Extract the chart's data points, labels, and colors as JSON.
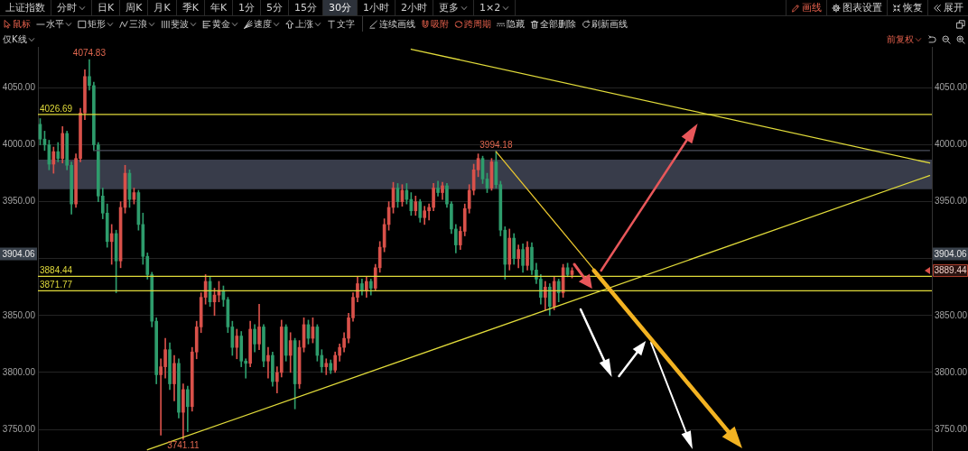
{
  "chart_data": {
    "type": "candlestick",
    "title": "上证指数",
    "categories": [
      null,
      null,
      null,
      null,
      null,
      null,
      null,
      null,
      null,
      null,
      null,
      null,
      null,
      null,
      null,
      null,
      null,
      null,
      null,
      null,
      null,
      null,
      null,
      null,
      null,
      null,
      null,
      null,
      null,
      null,
      null,
      null,
      null,
      null,
      null,
      null,
      null,
      null,
      null,
      null,
      null,
      null,
      null,
      null,
      null,
      null,
      null,
      null,
      null,
      null,
      null,
      null,
      null,
      null,
      null,
      null,
      null,
      null,
      null,
      null,
      null,
      null,
      null,
      null,
      null,
      null,
      null,
      null,
      null,
      null,
      null,
      null,
      null,
      null,
      null,
      null,
      null,
      null,
      null,
      null,
      null,
      null,
      null,
      null,
      null,
      null,
      null,
      null,
      null,
      null,
      null,
      null,
      null,
      null,
      null,
      null,
      null,
      null,
      null,
      null,
      null,
      null,
      null,
      null,
      null,
      null,
      null,
      null,
      null,
      null,
      null,
      null,
      null,
      null,
      null,
      null,
      null,
      null,
      null,
      null,
      null,
      null,
      null,
      null,
      null,
      null,
      null,
      null,
      null,
      null,
      null,
      null,
      null,
      null,
      null,
      null,
      null,
      null,
      null,
      null,
      null,
      null,
      null,
      null,
      null,
      null,
      null,
      null,
      null,
      null,
      null,
      null,
      null,
      null,
      null,
      null,
      null,
      null,
      null,
      null,
      null,
      null,
      null,
      null,
      null,
      null,
      null,
      null,
      null,
      null,
      null,
      null,
      null,
      null,
      null,
      null,
      null,
      null,
      null,
      null,
      null,
      null,
      null,
      null,
      null,
      null,
      null,
      null,
      null,
      null,
      null,
      null,
      null,
      null,
      null,
      null,
      null,
      null,
      null,
      null
    ],
    "ohlc": [
      [
        4018,
        4023,
        4000,
        4005
      ],
      [
        4005,
        4012,
        3995,
        4000
      ],
      [
        4000,
        4004,
        3978,
        3983
      ],
      [
        3983,
        3998,
        3975,
        3994
      ],
      [
        3994,
        4002,
        3985,
        3988
      ],
      [
        3988,
        4016,
        3984,
        4010
      ],
      [
        4010,
        4012,
        3978,
        3982
      ],
      [
        3982,
        3985,
        3939,
        3948
      ],
      [
        3948,
        3992,
        3945,
        3988
      ],
      [
        3988,
        4032,
        3985,
        4028
      ],
      [
        4028,
        4066,
        4022,
        4060
      ],
      [
        4060,
        4074.83,
        4048,
        4052
      ],
      [
        4052,
        4055,
        3995,
        4000
      ],
      [
        4000,
        4002,
        3950,
        3955
      ],
      [
        3955,
        3962,
        3935,
        3940
      ],
      [
        3940,
        3948,
        3910,
        3915
      ],
      [
        3915,
        3930,
        3895,
        3922
      ],
      [
        3922,
        3925,
        3870,
        3898
      ],
      [
        3898,
        3950,
        3892,
        3945
      ],
      [
        3945,
        3982,
        3940,
        3975
      ],
      [
        3975,
        3978,
        3945,
        3952
      ],
      [
        3952,
        3962,
        3948,
        3958
      ],
      [
        3958,
        3960,
        3925,
        3930
      ],
      [
        3930,
        3940,
        3895,
        3902
      ],
      [
        3902,
        3905,
        3882,
        3886
      ],
      [
        3886,
        3888,
        3840,
        3845
      ],
      [
        3845,
        3848,
        3790,
        3798
      ],
      [
        3798,
        3812,
        3745,
        3805
      ],
      [
        3805,
        3830,
        3795,
        3820
      ],
      [
        3820,
        3826,
        3785,
        3790
      ],
      [
        3790,
        3815,
        3775,
        3808
      ],
      [
        3808,
        3812,
        3760,
        3765
      ],
      [
        3765,
        3790,
        3741.11,
        3785
      ],
      [
        3785,
        3788,
        3748,
        3770
      ],
      [
        3770,
        3822,
        3766,
        3818
      ],
      [
        3818,
        3845,
        3812,
        3840
      ],
      [
        3840,
        3870,
        3835,
        3866
      ],
      [
        3866,
        3886,
        3860,
        3880
      ],
      [
        3880,
        3884,
        3858,
        3862
      ],
      [
        3862,
        3874,
        3850,
        3868
      ],
      [
        3868,
        3880,
        3862,
        3872
      ],
      [
        3872,
        3876,
        3858,
        3864
      ],
      [
        3864,
        3866,
        3835,
        3840
      ],
      [
        3840,
        3845,
        3815,
        3822
      ],
      [
        3822,
        3838,
        3812,
        3832
      ],
      [
        3832,
        3836,
        3805,
        3810
      ],
      [
        3810,
        3812,
        3795,
        3808
      ],
      [
        3808,
        3845,
        3805,
        3838
      ],
      [
        3838,
        3842,
        3818,
        3825
      ],
      [
        3825,
        3860,
        3820,
        3840
      ],
      [
        3840,
        3842,
        3805,
        3810
      ],
      [
        3810,
        3822,
        3795,
        3815
      ],
      [
        3815,
        3818,
        3788,
        3792
      ],
      [
        3792,
        3805,
        3782,
        3800
      ],
      [
        3800,
        3846,
        3796,
        3840
      ],
      [
        3840,
        3842,
        3810,
        3815
      ],
      [
        3815,
        3835,
        3800,
        3828
      ],
      [
        3828,
        3830,
        3768,
        3790
      ],
      [
        3790,
        3828,
        3786,
        3822
      ],
      [
        3822,
        3848,
        3818,
        3842
      ],
      [
        3842,
        3846,
        3825,
        3830
      ],
      [
        3830,
        3848,
        3826,
        3840
      ],
      [
        3840,
        3842,
        3810,
        3815
      ],
      [
        3815,
        3820,
        3800,
        3805
      ],
      [
        3805,
        3812,
        3798,
        3808
      ],
      [
        3808,
        3811,
        3799,
        3802
      ],
      [
        3802,
        3818,
        3800,
        3815
      ],
      [
        3815,
        3825,
        3810,
        3822
      ],
      [
        3822,
        3835,
        3818,
        3830
      ],
      [
        3830,
        3852,
        3826,
        3848
      ],
      [
        3848,
        3870,
        3845,
        3866
      ],
      [
        3866,
        3884,
        3862,
        3878
      ],
      [
        3878,
        3882,
        3868,
        3872
      ],
      [
        3872,
        3884,
        3866,
        3880
      ],
      [
        3880,
        3882,
        3868,
        3874
      ],
      [
        3874,
        3895,
        3872,
        3892
      ],
      [
        3892,
        3915,
        3888,
        3910
      ],
      [
        3910,
        3935,
        3906,
        3930
      ],
      [
        3930,
        3950,
        3925,
        3945
      ],
      [
        3945,
        3967,
        3940,
        3962
      ],
      [
        3962,
        3966,
        3945,
        3950
      ],
      [
        3950,
        3965,
        3946,
        3960
      ],
      [
        3960,
        3966,
        3948,
        3952
      ],
      [
        3952,
        3958,
        3938,
        3942
      ],
      [
        3942,
        3955,
        3938,
        3950
      ],
      [
        3950,
        3952,
        3932,
        3936
      ],
      [
        3936,
        3946,
        3930,
        3942
      ],
      [
        3942,
        3948,
        3934,
        3945
      ],
      [
        3945,
        3966,
        3942,
        3962
      ],
      [
        3962,
        3968,
        3955,
        3958
      ],
      [
        3958,
        3967,
        3952,
        3964
      ],
      [
        3964,
        3966,
        3945,
        3948
      ],
      [
        3948,
        3950,
        3922,
        3926
      ],
      [
        3926,
        3930,
        3905,
        3912
      ],
      [
        3912,
        3928,
        3908,
        3924
      ],
      [
        3924,
        3948,
        3920,
        3944
      ],
      [
        3944,
        3965,
        3940,
        3960
      ],
      [
        3960,
        3983,
        3956,
        3978
      ],
      [
        3978,
        3992,
        3972,
        3988
      ],
      [
        3988,
        3990,
        3966,
        3970
      ],
      [
        3970,
        3975,
        3958,
        3962
      ],
      [
        3962,
        3988,
        3960,
        3985
      ],
      [
        3985,
        3994.18,
        3962,
        3965
      ],
      [
        3965,
        3968,
        3920,
        3925
      ],
      [
        3925,
        3928,
        3882,
        3895
      ],
      [
        3895,
        3926,
        3890,
        3918
      ],
      [
        3918,
        3922,
        3895,
        3900
      ],
      [
        3900,
        3912,
        3892,
        3908
      ],
      [
        3908,
        3913,
        3888,
        3894
      ],
      [
        3894,
        3915,
        3890,
        3910
      ],
      [
        3910,
        3914,
        3886,
        3890
      ],
      [
        3890,
        3896,
        3878,
        3882
      ],
      [
        3882,
        3886,
        3860,
        3866
      ],
      [
        3866,
        3880,
        3855,
        3875
      ],
      [
        3875,
        3878,
        3850,
        3858
      ],
      [
        3858,
        3884,
        3855,
        3880
      ],
      [
        3880,
        3882,
        3862,
        3870
      ],
      [
        3870,
        3895,
        3866,
        3892
      ],
      [
        3892,
        3896,
        3884,
        3886
      ],
      [
        3886,
        3892,
        3883,
        3889.44
      ],
      null,
      null,
      null,
      null,
      null,
      null,
      null,
      null,
      null,
      null,
      null,
      null,
      null,
      null,
      null,
      null,
      null,
      null,
      null,
      null,
      null,
      null,
      null,
      null,
      null,
      null,
      null,
      null,
      null,
      null,
      null,
      null,
      null,
      null,
      null,
      null,
      null,
      null,
      null,
      null,
      null,
      null,
      null,
      null,
      null,
      null,
      null,
      null,
      null,
      null,
      null,
      null,
      null,
      null,
      null,
      null,
      null,
      null,
      null,
      null,
      null,
      null,
      null,
      null,
      null,
      null,
      null,
      null,
      null,
      null,
      null,
      null,
      null,
      null,
      null,
      null,
      null,
      null,
      null,
      null
    ],
    "colors": [
      "#2e9c6c",
      "#2e9c6c",
      "#2e9c6c",
      "#d9514a",
      "#2e9c6c",
      "#d9514a",
      "#2e9c6c",
      "#2e9c6c",
      "#d9514a",
      "#d9514a",
      "#d9514a",
      "#2e9c6c",
      "#2e9c6c",
      "#2e9c6c",
      "#2e9c6c",
      "#2e9c6c",
      "#d9514a",
      "#2e9c6c",
      "#d9514a",
      "#d9514a",
      "#2e9c6c",
      "#d9514a",
      "#2e9c6c",
      "#2e9c6c",
      "#2e9c6c",
      "#2e9c6c",
      "#2e9c6c",
      "#d9514a",
      "#d9514a",
      "#2e9c6c",
      "#d9514a",
      "#2e9c6c",
      "#d9514a",
      "#2e9c6c",
      "#d9514a",
      "#d9514a",
      "#d9514a",
      "#d9514a",
      "#2e9c6c",
      "#d9514a",
      "#d9514a",
      "#2e9c6c",
      "#2e9c6c",
      "#2e9c6c",
      "#d9514a",
      "#2e9c6c",
      "#2e9c6c",
      "#d9514a",
      "#2e9c6c",
      "#d9514a",
      "#2e9c6c",
      "#d9514a",
      "#2e9c6c",
      "#d9514a",
      "#d9514a",
      "#2e9c6c",
      "#d9514a",
      "#2e9c6c",
      "#d9514a",
      "#d9514a",
      "#2e9c6c",
      "#d9514a",
      "#2e9c6c",
      "#2e9c6c",
      "#d9514a",
      "#2e9c6c",
      "#d9514a",
      "#d9514a",
      "#d9514a",
      "#d9514a",
      "#d9514a",
      "#d9514a",
      "#2e9c6c",
      "#d9514a",
      "#2e9c6c",
      "#d9514a",
      "#d9514a",
      "#d9514a",
      "#d9514a",
      "#d9514a",
      "#2e9c6c",
      "#d9514a",
      "#2e9c6c",
      "#2e9c6c",
      "#d9514a",
      "#2e9c6c",
      "#d9514a",
      "#d9514a",
      "#d9514a",
      "#2e9c6c",
      "#d9514a",
      "#2e9c6c",
      "#2e9c6c",
      "#2e9c6c",
      "#d9514a",
      "#d9514a",
      "#d9514a",
      "#d9514a",
      "#d9514a",
      "#2e9c6c",
      "#2e9c6c",
      "#d9514a",
      "#2e9c6c",
      "#2e9c6c",
      "#2e9c6c",
      "#d9514a",
      "#2e9c6c",
      "#d9514a",
      "#2e9c6c",
      "#d9514a",
      "#2e9c6c",
      "#2e9c6c",
      "#2e9c6c",
      "#d9514a",
      "#2e9c6c",
      "#d9514a",
      "#2e9c6c",
      "#d9514a",
      "#2e9c6c",
      "#d9514a",
      null,
      null,
      null,
      null,
      null,
      null,
      null,
      null,
      null,
      null,
      null,
      null,
      null,
      null,
      null,
      null,
      null,
      null,
      null,
      null,
      null,
      null,
      null,
      null,
      null,
      null,
      null,
      null,
      null,
      null,
      null,
      null,
      null,
      null,
      null,
      null,
      null,
      null,
      null,
      null,
      null,
      null,
      null,
      null,
      null,
      null,
      null,
      null,
      null,
      null,
      null,
      null,
      null,
      null,
      null,
      null,
      null,
      null,
      null,
      null,
      null,
      null,
      null,
      null,
      null,
      null,
      null,
      null,
      null,
      null,
      null,
      null,
      null,
      null,
      null,
      null,
      null,
      null,
      null,
      null
    ],
    "series": [
      {
        "type": "line",
        "color": "#e0da3a",
        "values": [
          null,
          null,
          null,
          null,
          null,
          null,
          null,
          null,
          null,
          null,
          null,
          null,
          null,
          null,
          null,
          null,
          null,
          null,
          null,
          null,
          null,
          null,
          null,
          null,
          null,
          null,
          null,
          null,
          null,
          null,
          null,
          null,
          null,
          null,
          null,
          null,
          null,
          null,
          null,
          null,
          null,
          null,
          null,
          null,
          null,
          null,
          null,
          null,
          null,
          null,
          null,
          null,
          null,
          null,
          null,
          null,
          null,
          null,
          null,
          null,
          null,
          null,
          null,
          null,
          null,
          null,
          null,
          null,
          null,
          null,
          null,
          null,
          null,
          null,
          null,
          null,
          null,
          null,
          null,
          null,
          null,
          null,
          null,
          4084,
          null,
          null,
          null,
          null,
          null,
          null,
          null,
          null,
          null,
          null,
          null,
          null,
          null,
          null,
          null,
          null,
          null,
          null,
          null,
          null,
          null,
          null,
          null,
          null,
          null,
          null,
          null,
          null,
          null,
          null,
          null,
          null,
          null,
          null,
          null,
          null,
          null,
          null,
          null,
          null,
          null,
          null,
          null,
          null,
          null,
          null,
          null,
          null,
          null,
          null,
          null,
          null,
          null,
          null,
          null,
          null,
          null,
          null,
          null,
          null,
          null,
          null,
          null,
          null,
          null,
          null,
          null,
          null,
          null,
          null,
          null,
          null,
          null,
          null,
          null,
          null,
          null,
          null,
          null,
          null,
          null,
          null,
          null,
          null,
          null,
          null,
          null,
          null,
          null,
          null,
          null,
          null,
          null,
          null,
          null,
          null,
          null,
          null,
          null,
          null,
          null,
          null,
          null,
          null,
          null,
          null,
          null,
          null,
          null,
          null,
          null,
          null,
          null,
          null,
          null,
          3984
        ]
      },
      {
        "type": "line",
        "color": "#e0da3a",
        "values": [
          null,
          null,
          null,
          null,
          null,
          null,
          null,
          null,
          null,
          null,
          null,
          null,
          null,
          null,
          null,
          null,
          null,
          null,
          null,
          null,
          null,
          null,
          null,
          null,
          3732,
          null,
          null,
          null,
          null,
          null,
          null,
          null,
          null,
          null,
          null,
          null,
          null,
          null,
          null,
          null,
          null,
          null,
          null,
          null,
          null,
          null,
          null,
          null,
          null,
          null,
          null,
          null,
          null,
          null,
          null,
          null,
          null,
          null,
          null,
          null,
          null,
          null,
          null,
          null,
          null,
          null,
          null,
          null,
          null,
          null,
          null,
          null,
          null,
          null,
          null,
          null,
          null,
          null,
          null,
          null,
          null,
          null,
          null,
          null,
          null,
          null,
          null,
          null,
          null,
          null,
          null,
          null,
          null,
          null,
          null,
          null,
          null,
          null,
          null,
          null,
          null,
          null,
          null,
          null,
          null,
          null,
          null,
          null,
          null,
          null,
          null,
          null,
          null,
          null,
          null,
          null,
          null,
          null,
          null,
          null,
          null,
          null,
          null,
          null,
          null,
          null,
          null,
          null,
          null,
          null,
          null,
          null,
          null,
          null,
          null,
          null,
          null,
          null,
          null,
          null,
          null,
          null,
          null,
          null,
          null,
          null,
          null,
          null,
          null,
          null,
          null,
          null,
          null,
          null,
          null,
          null,
          null,
          null,
          null,
          null,
          null,
          null,
          null,
          null,
          null,
          null,
          null,
          null,
          null,
          null,
          null,
          null,
          null,
          null,
          null,
          null,
          null,
          null,
          null,
          null,
          null,
          null,
          null,
          null,
          null,
          null,
          null,
          null,
          null,
          null,
          null,
          null,
          null,
          null,
          null,
          null,
          null,
          null,
          null,
          3973
        ]
      },
      {
        "type": "line",
        "color": "#e8c52e",
        "values": [
          null,
          null,
          null,
          null,
          null,
          null,
          null,
          null,
          null,
          null,
          null,
          null,
          null,
          null,
          null,
          null,
          null,
          null,
          null,
          null,
          null,
          null,
          null,
          null,
          null,
          null,
          null,
          null,
          null,
          null,
          null,
          null,
          null,
          null,
          null,
          null,
          null,
          null,
          null,
          null,
          null,
          null,
          null,
          null,
          null,
          null,
          null,
          null,
          null,
          null,
          null,
          null,
          null,
          null,
          null,
          null,
          null,
          null,
          null,
          null,
          null,
          null,
          null,
          null,
          null,
          null,
          null,
          null,
          null,
          null,
          null,
          null,
          null,
          null,
          null,
          null,
          null,
          null,
          null,
          null,
          null,
          null,
          null,
          null,
          null,
          null,
          null,
          null,
          null,
          null,
          null,
          null,
          null,
          null,
          null,
          null,
          null,
          null,
          null,
          null,
          null,
          null,
          3994,
          null,
          null,
          null,
          null,
          null,
          null,
          null,
          null,
          null,
          null,
          null,
          null,
          null,
          null,
          null,
          null,
          null,
          null,
          null,
          null,
          null,
          3890,
          null,
          null,
          null,
          null,
          null,
          null,
          null,
          null,
          null,
          null,
          null,
          null,
          null,
          null,
          null,
          null,
          null,
          null,
          null,
          null,
          null,
          null,
          null,
          null,
          null,
          null,
          null,
          null,
          null,
          null,
          null,
          null,
          null,
          null,
          null,
          null,
          null,
          null,
          null,
          null,
          null,
          null,
          null,
          null,
          null,
          null,
          null,
          null,
          null,
          null,
          null,
          null,
          null,
          null,
          null,
          null,
          null,
          null,
          null,
          null,
          null,
          null,
          null,
          null,
          null,
          null,
          null,
          null,
          null,
          null,
          null,
          null,
          null,
          null,
          null
        ]
      },
      {
        "type": "line",
        "color": "#4b4f5c",
        "values": [
          null,
          null,
          null,
          null,
          null,
          null,
          null,
          null,
          null,
          null,
          null,
          null,
          3995,
          null,
          null,
          null,
          null,
          null,
          null,
          null,
          null,
          null,
          null,
          null,
          null,
          null,
          null,
          null,
          null,
          null,
          null,
          null,
          null,
          null,
          null,
          null,
          null,
          null,
          null,
          null,
          null,
          null,
          null,
          null,
          null,
          null,
          null,
          null,
          null,
          null,
          null,
          null,
          null,
          null,
          null,
          null,
          null,
          null,
          null,
          null,
          null,
          null,
          null,
          null,
          null,
          null,
          null,
          null,
          null,
          null,
          null,
          null,
          null,
          null,
          null,
          null,
          null,
          null,
          null,
          null,
          null,
          null,
          null,
          null,
          null,
          null,
          null,
          null,
          null,
          null,
          null,
          null,
          null,
          null,
          null,
          null,
          null,
          null,
          null,
          null,
          null,
          null,
          null,
          null,
          null,
          null,
          null,
          null,
          null,
          null,
          null,
          null,
          null,
          null,
          null,
          null,
          null,
          null,
          null,
          null,
          null,
          null,
          null,
          null,
          null,
          null,
          null,
          null,
          null,
          null,
          null,
          null,
          null,
          null,
          null,
          null,
          null,
          null,
          null,
          null,
          null,
          null,
          null,
          null,
          null,
          null,
          null,
          null,
          null,
          null,
          null,
          null,
          null,
          null,
          null,
          null,
          null,
          null,
          null,
          null,
          null,
          null,
          null,
          null,
          null,
          null,
          null,
          null,
          null,
          null,
          null,
          null,
          null,
          null,
          null,
          null,
          null,
          null,
          null,
          null,
          null,
          null,
          null,
          null,
          null,
          null,
          null,
          null,
          null,
          null,
          null,
          null,
          null,
          null,
          null,
          null,
          null,
          null,
          null,
          3995
        ]
      }
    ],
    "ylim": [
      3731,
      4086
    ],
    "yticks": [
      {
        "value": 3750,
        "label": "3750.00"
      },
      {
        "value": 3800,
        "label": "3800.00"
      },
      {
        "value": 3850,
        "label": "3850.00"
      },
      {
        "value": 3900,
        "label": null
      },
      {
        "value": 3950,
        "label": "3950.00"
      },
      {
        "value": 4000,
        "label": "4000.00"
      },
      {
        "value": 4050,
        "label": "4050.00"
      }
    ],
    "y2lim": [
      3731,
      4086
    ],
    "y2ticks": [
      {
        "value": 3750,
        "label": "3750.00"
      },
      {
        "value": 3800,
        "label": "3800.00"
      },
      {
        "value": 3850,
        "label": "3850.00"
      },
      {
        "value": 3900,
        "label": null
      },
      {
        "value": 3950,
        "label": "3950.00"
      },
      {
        "value": 4000,
        "label": "4000.00"
      },
      {
        "value": 4050,
        "label": "4050.00"
      }
    ],
    "ref_lines": [
      {
        "axis": "y",
        "value": 4026.69,
        "label": "4026.69",
        "color": "#e0da3a"
      },
      {
        "axis": "y",
        "value": 3884.44,
        "label": "3884.44",
        "color": "#e0da3a"
      },
      {
        "axis": "y",
        "value": 3871.77,
        "label": "3871.77",
        "color": "#e0da3a"
      }
    ],
    "bands": [
      {
        "axis": "y",
        "from": 3961,
        "to": 3987,
        "color": "#383c4a"
      }
    ],
    "grid": "y",
    "marker": "none",
    "tick_labels": "y",
    "annotations": [
      "分时",
      "日K",
      "周K",
      "月K",
      "季K",
      "年K",
      "1分",
      "5分",
      "15分",
      "30分",
      "1小时",
      "2小时",
      "更多",
      "1×2",
      "画线",
      "图表设置",
      "恢复",
      "展开",
      "鼠标",
      "水平",
      "矩形",
      "三浪",
      "斐波",
      "黄金",
      "速度",
      "上涨",
      "文字",
      "连续画线",
      "吸附",
      "跨周期",
      "隐藏",
      "全部删除",
      "刷新画线",
      "仅K线",
      "前复权",
      {
        "text": "4074.83",
        "y": 4074.83
      },
      {
        "text": "3741.11",
        "y": 3741.11
      },
      {
        "text": "3994.18",
        "y": 3994.18
      },
      {
        "text": "3904.06",
        "y": 3904.06
      },
      {
        "text": "3904.06",
        "y": 3904.06
      },
      {
        "text": "3889.44",
        "y": 3889.44
      }
    ]
  }
}
